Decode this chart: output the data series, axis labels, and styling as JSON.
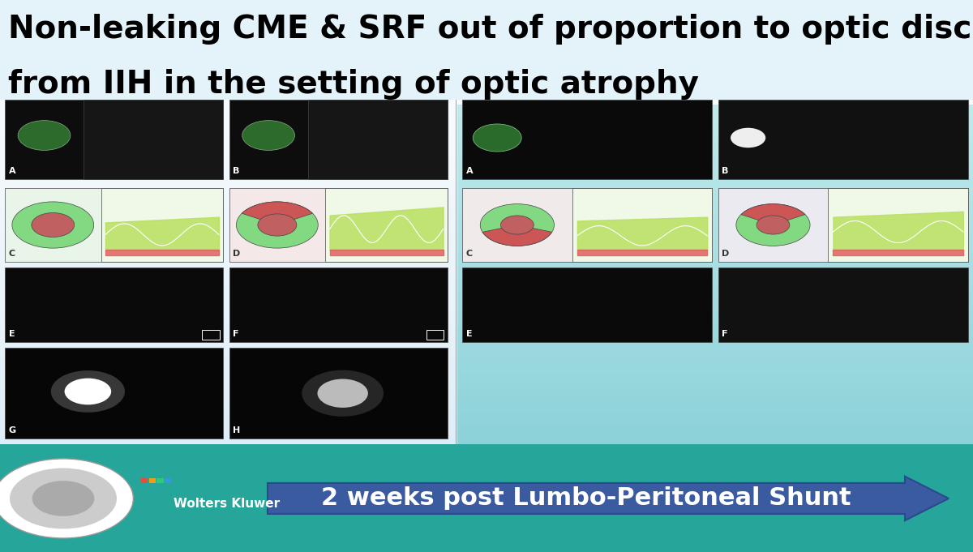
{
  "title_line1": "Non-leaking CME & SRF out of proportion to optic disc edema",
  "title_line2": "from IIH in the setting of optic atrophy",
  "title_color": "#000000",
  "title_fontsize": 28,
  "arrow_text": "2 weeks post Lumbo-Peritoneal Shunt",
  "arrow_color": "#3a5ba0",
  "arrow_text_color": "#ffffff",
  "arrow_fontsize": 22,
  "wolters_kluwer_text": "Wolters Kluwer"
}
